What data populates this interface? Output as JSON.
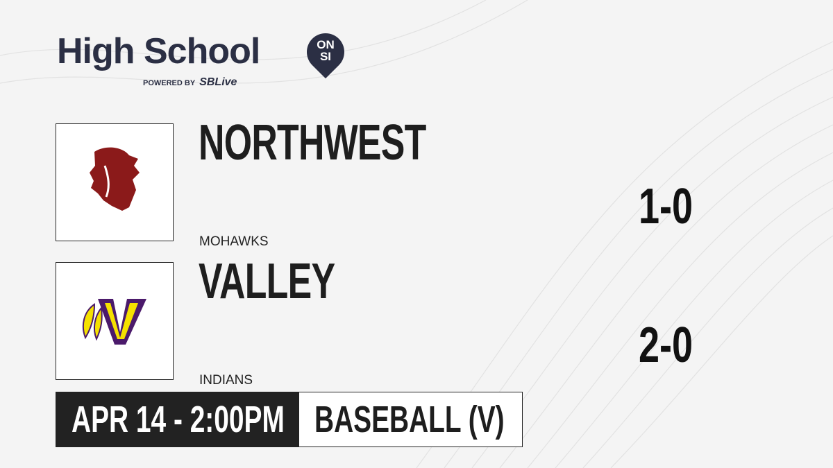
{
  "brand": {
    "title": "High School",
    "badge_top": "ON",
    "badge_bottom": "SI",
    "powered_by": "POWERED BY",
    "partner": "SBLive"
  },
  "teams": [
    {
      "name": "NORTHWEST",
      "mascot": "MOHAWKS",
      "record": "1-0",
      "logo_color": "#8b1a1a"
    },
    {
      "name": "VALLEY",
      "mascot": "INDIANS",
      "record": "2-0",
      "logo_color": "#4b1a6b",
      "logo_accent": "#f5e100"
    }
  ],
  "game": {
    "datetime": "APR 14 - 2:00PM",
    "sport": "BASEBALL (V)"
  }
}
